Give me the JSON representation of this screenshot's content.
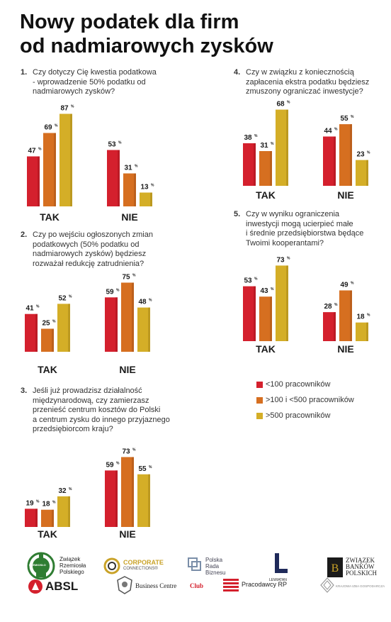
{
  "title": [
    "Nowy podatek dla firm",
    "od nadmiarowych zysków"
  ],
  "colors": {
    "small": "#d4202d",
    "medium": "#d66f20",
    "large": "#d4ae27"
  },
  "legend": [
    {
      "label": "<100 pracowników",
      "color": "#d4202d"
    },
    {
      "label": ">100 i <500 pracowników",
      "color": "#d66f20"
    },
    {
      "label": ">500 pracowników",
      "color": "#d4ae27"
    }
  ],
  "questions": [
    {
      "number": "1.",
      "lines": [
        "Czy dotyczy Cię kwestia podatkowa",
        "- wprowadzenie 50% podatku od",
        "nadmiarowych zysków?"
      ]
    },
    {
      "number": "2.",
      "lines": [
        "Czy po wejściu ogłoszonych zmian",
        "podatkowych (50% podatku od",
        "nadmiarowych zysków) będziesz",
        "rozważał redukcję zatrudnienia?"
      ]
    },
    {
      "number": "3.",
      "lines": [
        "Jeśli już prowadzisz działalność",
        "międzynarodową, czy zamierzasz",
        "przenieść centrum kosztów do Polski",
        "a centrum zysku do innego przyjaznego",
        "przedsiębiorcom kraju?"
      ]
    },
    {
      "number": "4.",
      "lines": [
        "Czy w związku z koniecznością",
        "zapłacenia ekstra podatku będziesz",
        "zmuszony ograniczać inwestycje?"
      ]
    },
    {
      "number": "5.",
      "lines": [
        "Czy w wyniku ograniczenia",
        "inwestycji mogą ucierpieć małe",
        "i średnie przedsiębiorstwa będące",
        "Twoimi kooperantami?"
      ]
    }
  ],
  "chart_data": [
    {
      "type": "bar",
      "categories": [
        "TAK",
        "NIE"
      ],
      "series": [
        {
          "name": "<100 pracowników",
          "values": [
            47,
            53
          ]
        },
        {
          "name": ">100 i <500 pracowników",
          "values": [
            69,
            31
          ]
        },
        {
          "name": ">500 pracowników",
          "values": [
            87,
            13
          ]
        }
      ],
      "unit": "%"
    },
    {
      "type": "bar",
      "categories": [
        "TAK",
        "NIE"
      ],
      "series": [
        {
          "name": "<100 pracowników",
          "values": [
            41,
            59
          ]
        },
        {
          "name": ">100 i <500 pracowników",
          "values": [
            25,
            75
          ]
        },
        {
          "name": ">500 pracowników",
          "values": [
            52,
            48
          ]
        }
      ],
      "unit": "%"
    },
    {
      "type": "bar",
      "categories": [
        "TAK",
        "NIE"
      ],
      "series": [
        {
          "name": "<100 pracowników",
          "values": [
            19,
            59
          ]
        },
        {
          "name": ">100 i <500 pracowników",
          "values": [
            18,
            73
          ]
        },
        {
          "name": ">500 pracowników",
          "values": [
            32,
            55
          ]
        }
      ],
      "unit": "%"
    },
    {
      "type": "bar",
      "categories": [
        "TAK",
        "NIE"
      ],
      "series": [
        {
          "name": "<100 pracowników",
          "values": [
            38,
            44
          ]
        },
        {
          "name": ">100 i <500 pracowników",
          "values": [
            31,
            55
          ]
        },
        {
          "name": ">500 pracowników",
          "values": [
            68,
            23
          ]
        }
      ],
      "unit": "%"
    },
    {
      "type": "bar",
      "categories": [
        "TAK",
        "NIE"
      ],
      "series": [
        {
          "name": "<100 pracowników",
          "values": [
            53,
            28
          ]
        },
        {
          "name": ">100 i <500 pracowników",
          "values": [
            43,
            49
          ]
        },
        {
          "name": ">500 pracowników",
          "values": [
            73,
            18
          ]
        }
      ],
      "unit": "%"
    }
  ],
  "logos": {
    "zrp": {
      "lines": [
        "Związek",
        "Rzemiosła",
        "Polskiego"
      ],
      "badge": "RZEMIOSŁO"
    },
    "corporate": {
      "lines": [
        "CORPORATE",
        "CONNECTIONS®"
      ]
    },
    "prb": {
      "lines": [
        "Polska",
        "Rada",
        "Biznesu"
      ]
    },
    "lewiatan": {
      "lines": [
        "LEWIATAN"
      ]
    },
    "zbp": {
      "lines": [
        "ZWIĄZEK",
        "BANKÓW",
        "POLSKICH"
      ]
    },
    "absl": {
      "lines": [
        "ABSL"
      ]
    },
    "bcc": {
      "lines": [
        "Business Centre ",
        "Club"
      ]
    },
    "prp": {
      "lines": [
        "Pracodawcy RP"
      ]
    },
    "kig": {
      "lines": [
        "KRAJOWA IZBA GOSPODARCZA"
      ]
    }
  }
}
